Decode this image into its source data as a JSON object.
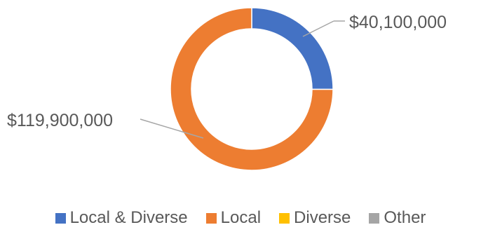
{
  "chart_data": {
    "type": "pie",
    "variant": "doughnut",
    "categories": [
      "Local & Diverse",
      "Local",
      "Diverse",
      "Other"
    ],
    "values": [
      40100000,
      119900000,
      0,
      0
    ],
    "data_labels": [
      "$40,100,000",
      "$119,900,000",
      "",
      ""
    ],
    "colors": [
      "#4472C4",
      "#ED7D31",
      "#FFC000",
      "#A5A5A5"
    ],
    "legend_position": "bottom"
  },
  "legend": {
    "items": [
      {
        "label": "Local & Diverse",
        "color": "#4472C4"
      },
      {
        "label": "Local",
        "color": "#ED7D31"
      },
      {
        "label": "Diverse",
        "color": "#FFC000"
      },
      {
        "label": "Other",
        "color": "#A5A5A5"
      }
    ]
  }
}
